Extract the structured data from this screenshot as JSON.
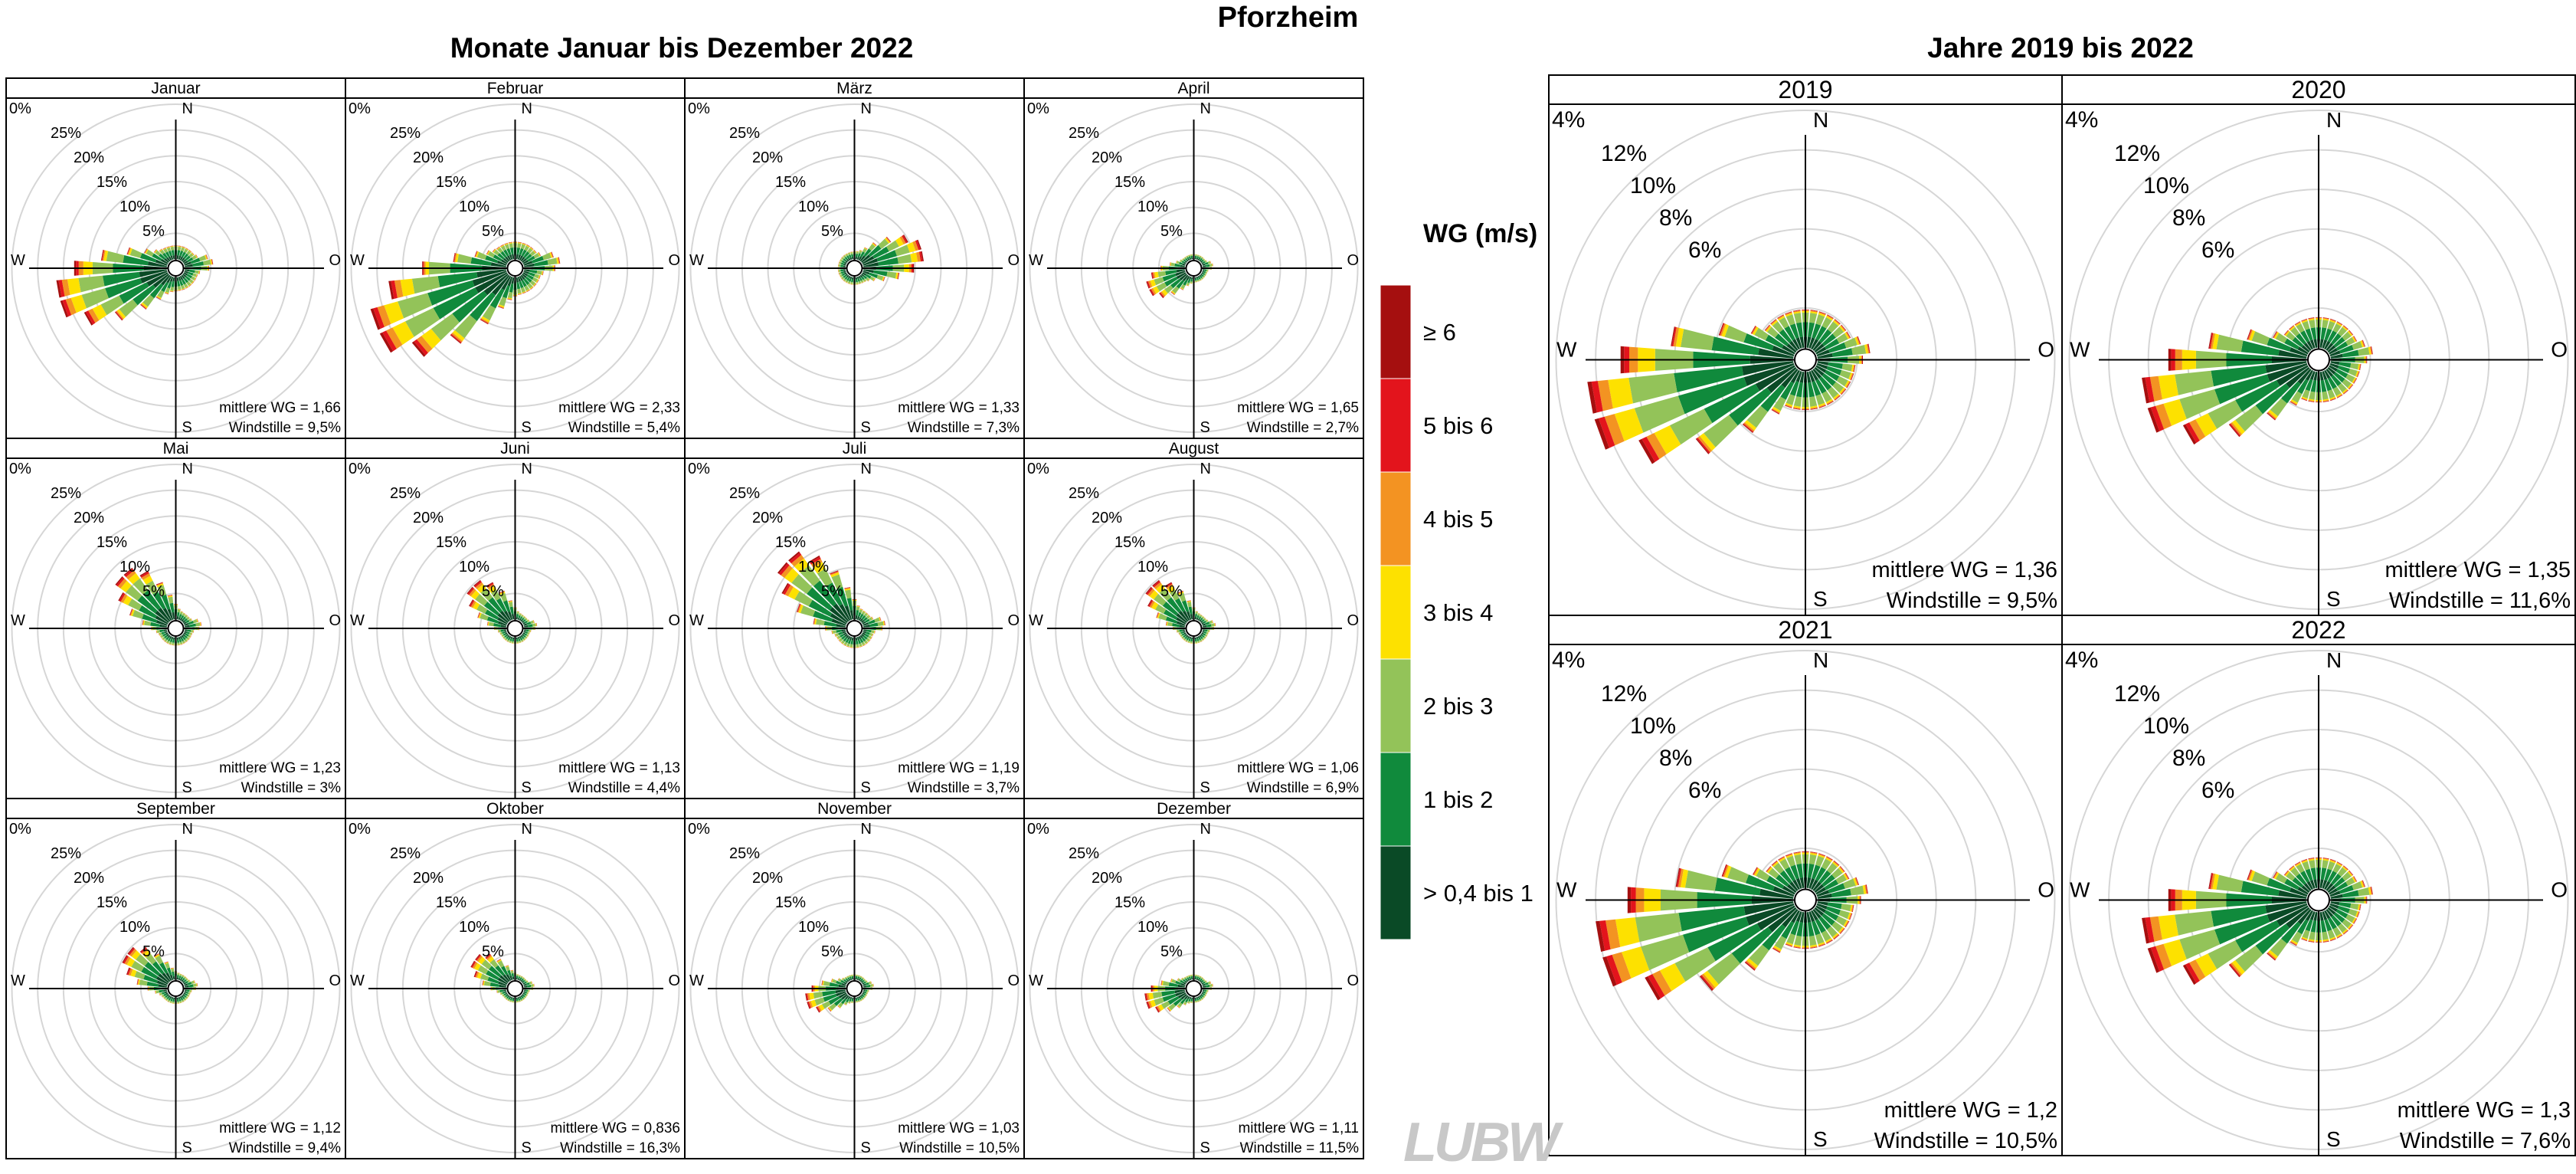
{
  "page": {
    "title": "Pforzheim",
    "left_section_title": "Monate Januar bis Dezember 2022",
    "right_section_title": "Jahre 2019 bis 2022"
  },
  "legend": {
    "title": "WG (m/s)",
    "items": [
      {
        "label": "≥ 6",
        "color": "#a50f0f"
      },
      {
        "label": "5 bis 6",
        "color": "#e3141c"
      },
      {
        "label": "4 bis 5",
        "color": "#f39322"
      },
      {
        "label": "3 bis 4",
        "color": "#fde100"
      },
      {
        "label": "2 bis 3",
        "color": "#93c359"
      },
      {
        "label": "1 bis 2",
        "color": "#108a3c"
      },
      {
        "label": "> 0,4 bis 1",
        "color": "#0a4a26"
      }
    ]
  },
  "logo": {
    "text": "LUBW"
  },
  "chart_data": [
    {
      "type": "windrose",
      "title": "Januar",
      "directions": [
        "N",
        "O",
        "S",
        "W"
      ],
      "rings": [
        "5%",
        "10%",
        "15%",
        "20%",
        "25%"
      ],
      "center_label": "0%",
      "ring_max": 30,
      "peak": {
        "direction_deg": 255,
        "percent": 22
      },
      "mean_ws_label": "mittlere WG = 1,66",
      "calm_label": "Windstille = 9,5%"
    },
    {
      "type": "windrose",
      "title": "Februar",
      "directions": [
        "N",
        "O",
        "S",
        "W"
      ],
      "rings": [
        "5%",
        "10%",
        "15%",
        "20%",
        "25%"
      ],
      "center_label": "0%",
      "ring_max": 30,
      "peak": {
        "direction_deg": 245,
        "percent": 28
      },
      "mean_ws_label": "mittlere WG = 2,33",
      "calm_label": "Windstille = 5,4%"
    },
    {
      "type": "windrose",
      "title": "März",
      "directions": [
        "N",
        "O",
        "S",
        "W"
      ],
      "rings": [
        "5%",
        "10%",
        "15%",
        "20%",
        "25%"
      ],
      "center_label": "0%",
      "ring_max": 30,
      "peak": {
        "direction_deg": 75,
        "percent": 12
      },
      "mean_ws_label": "mittlere WG = 1,33",
      "calm_label": "Windstille = 7,3%"
    },
    {
      "type": "windrose",
      "title": "April",
      "directions": [
        "N",
        "O",
        "S",
        "W"
      ],
      "rings": [
        "5%",
        "10%",
        "15%",
        "20%",
        "25%"
      ],
      "center_label": "0%",
      "ring_max": 30,
      "peak": {
        "direction_deg": 245,
        "percent": 8
      },
      "mean_ws_label": "mittlere WG = 1,65",
      "calm_label": "Windstille = 2,7%"
    },
    {
      "type": "windrose",
      "title": "Mai",
      "directions": [
        "N",
        "O",
        "S",
        "W"
      ],
      "rings": [
        "5%",
        "10%",
        "15%",
        "20%",
        "25%"
      ],
      "center_label": "0%",
      "ring_max": 30,
      "peak": {
        "direction_deg": 315,
        "percent": 13
      },
      "mean_ws_label": "mittlere WG = 1,23",
      "calm_label": "Windstille = 3%"
    },
    {
      "type": "windrose",
      "title": "Juni",
      "directions": [
        "N",
        "O",
        "S",
        "W"
      ],
      "rings": [
        "5%",
        "10%",
        "15%",
        "20%",
        "25%"
      ],
      "center_label": "0%",
      "ring_max": 30,
      "peak": {
        "direction_deg": 315,
        "percent": 10
      },
      "mean_ws_label": "mittlere WG = 1,13",
      "calm_label": "Windstille = 4,4%"
    },
    {
      "type": "windrose",
      "title": "Juli",
      "directions": [
        "N",
        "O",
        "S",
        "W"
      ],
      "rings": [
        "5%",
        "10%",
        "15%",
        "20%",
        "25%"
      ],
      "center_label": "0%",
      "ring_max": 30,
      "peak": {
        "direction_deg": 315,
        "percent": 17
      },
      "mean_ws_label": "mittlere WG = 1,19",
      "calm_label": "Windstille = 3,7%"
    },
    {
      "type": "windrose",
      "title": "August",
      "directions": [
        "N",
        "O",
        "S",
        "W"
      ],
      "rings": [
        "5%",
        "10%",
        "15%",
        "20%",
        "25%"
      ],
      "center_label": "0%",
      "ring_max": 30,
      "peak": {
        "direction_deg": 315,
        "percent": 10
      },
      "mean_ws_label": "mittlere WG = 1,06",
      "calm_label": "Windstille = 6,9%"
    },
    {
      "type": "windrose",
      "title": "September",
      "directions": [
        "N",
        "O",
        "S",
        "W"
      ],
      "rings": [
        "5%",
        "10%",
        "15%",
        "20%",
        "25%"
      ],
      "center_label": "0%",
      "ring_max": 30,
      "peak": {
        "direction_deg": 305,
        "percent": 10
      },
      "mean_ws_label": "mittlere WG = 1,12",
      "calm_label": "Windstille = 9,4%"
    },
    {
      "type": "windrose",
      "title": "Oktober",
      "directions": [
        "N",
        "O",
        "S",
        "W"
      ],
      "rings": [
        "5%",
        "10%",
        "15%",
        "20%",
        "25%"
      ],
      "center_label": "0%",
      "ring_max": 30,
      "peak": {
        "direction_deg": 305,
        "percent": 8
      },
      "mean_ws_label": "mittlere WG = 0,836",
      "calm_label": "Windstille = 16,3%"
    },
    {
      "type": "windrose",
      "title": "November",
      "directions": [
        "N",
        "O",
        "S",
        "W"
      ],
      "rings": [
        "5%",
        "10%",
        "15%",
        "20%",
        "25%"
      ],
      "center_label": "0%",
      "ring_max": 30,
      "peak": {
        "direction_deg": 255,
        "percent": 8
      },
      "mean_ws_label": "mittlere WG = 1,03",
      "calm_label": "Windstille = 10,5%"
    },
    {
      "type": "windrose",
      "title": "Dezember",
      "directions": [
        "N",
        "O",
        "S",
        "W"
      ],
      "rings": [
        "5%",
        "10%",
        "15%",
        "20%",
        "25%"
      ],
      "center_label": "0%",
      "ring_max": 30,
      "peak": {
        "direction_deg": 255,
        "percent": 8
      },
      "mean_ws_label": "mittlere WG = 1,11",
      "calm_label": "Windstille = 11,5%"
    },
    {
      "type": "windrose",
      "title": "2019",
      "directions": [
        "N",
        "O",
        "S",
        "W"
      ],
      "rings": [
        "6%",
        "8%",
        "10%",
        "12%"
      ],
      "center_label": "4%",
      "ring_max": 14,
      "peak": {
        "direction_deg": 255,
        "percent": 12.5
      },
      "mean_ws_label": "mittlere WG = 1,36",
      "calm_label": "Windstille = 9,5%"
    },
    {
      "type": "windrose",
      "title": "2020",
      "directions": [
        "N",
        "O",
        "S",
        "W"
      ],
      "rings": [
        "6%",
        "8%",
        "10%",
        "12%"
      ],
      "center_label": "4%",
      "ring_max": 14,
      "peak": {
        "direction_deg": 255,
        "percent": 10
      },
      "mean_ws_label": "mittlere WG = 1,35",
      "calm_label": "Windstille = 11,6%"
    },
    {
      "type": "windrose",
      "title": "2021",
      "directions": [
        "N",
        "O",
        "S",
        "W"
      ],
      "rings": [
        "6%",
        "8%",
        "10%",
        "12%"
      ],
      "center_label": "4%",
      "ring_max": 14,
      "peak": {
        "direction_deg": 255,
        "percent": 12
      },
      "mean_ws_label": "mittlere WG = 1,2",
      "calm_label": "Windstille = 10,5%"
    },
    {
      "type": "windrose",
      "title": "2022",
      "directions": [
        "N",
        "O",
        "S",
        "W"
      ],
      "rings": [
        "6%",
        "8%",
        "10%",
        "12%"
      ],
      "center_label": "4%",
      "ring_max": 14,
      "peak": {
        "direction_deg": 255,
        "percent": 10
      },
      "mean_ws_label": "mittlere WG = 1,3",
      "calm_label": "Windstille = 7,6%"
    }
  ]
}
